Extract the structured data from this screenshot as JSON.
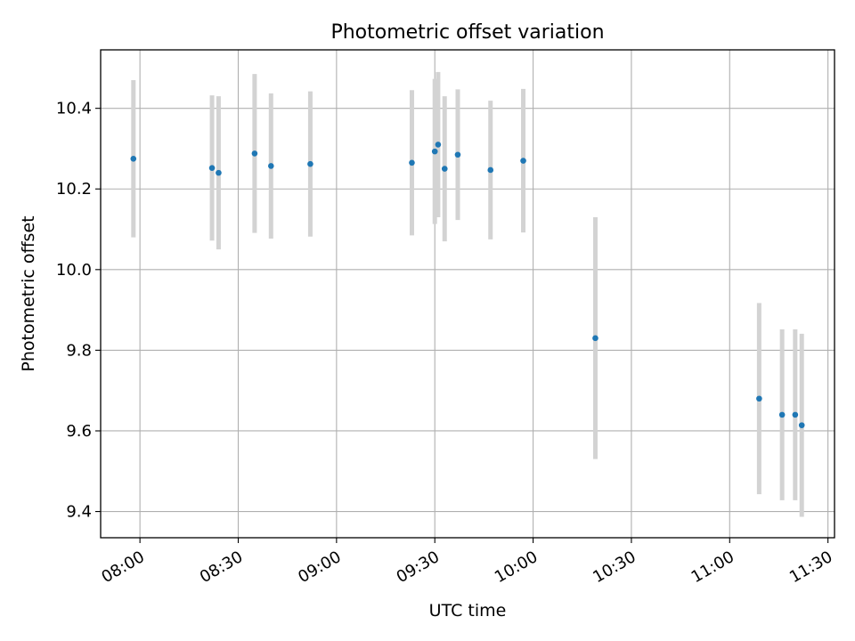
{
  "chart_data": {
    "type": "scatter",
    "title": "Photometric offset variation",
    "xlabel": "UTC time",
    "ylabel": "Photometric offset",
    "x_axis_type": "time",
    "xlim": [
      "07:48",
      "11:32"
    ],
    "ylim": [
      9.335,
      10.545
    ],
    "x_ticks": [
      "08:00",
      "08:30",
      "09:00",
      "09:30",
      "10:00",
      "10:30",
      "11:00",
      "11:30"
    ],
    "y_ticks": [
      9.4,
      9.6,
      9.8,
      10.0,
      10.2,
      10.4
    ],
    "y_tick_labels": [
      "9.4",
      "9.6",
      "9.8",
      "10.0",
      "10.2",
      "10.4"
    ],
    "grid": true,
    "marker_color": "#1f77b4",
    "errorbar_color": "#d3d3d3",
    "points": [
      {
        "x": "07:58",
        "y": 10.275,
        "yerr": 0.195
      },
      {
        "x": "08:22",
        "y": 10.252,
        "yerr": 0.18
      },
      {
        "x": "08:24",
        "y": 10.24,
        "yerr": 0.19
      },
      {
        "x": "08:35",
        "y": 10.288,
        "yerr": 0.197
      },
      {
        "x": "08:40",
        "y": 10.257,
        "yerr": 0.18
      },
      {
        "x": "08:52",
        "y": 10.262,
        "yerr": 0.18
      },
      {
        "x": "09:23",
        "y": 10.265,
        "yerr": 0.18
      },
      {
        "x": "09:30",
        "y": 10.293,
        "yerr": 0.18
      },
      {
        "x": "09:31",
        "y": 10.31,
        "yerr": 0.18
      },
      {
        "x": "09:33",
        "y": 10.25,
        "yerr": 0.18
      },
      {
        "x": "09:37",
        "y": 10.285,
        "yerr": 0.162
      },
      {
        "x": "09:47",
        "y": 10.247,
        "yerr": 0.172
      },
      {
        "x": "09:57",
        "y": 10.27,
        "yerr": 0.178
      },
      {
        "x": "10:19",
        "y": 9.83,
        "yerr": 0.3
      },
      {
        "x": "11:09",
        "y": 9.68,
        "yerr": 0.237
      },
      {
        "x": "11:16",
        "y": 9.64,
        "yerr": 0.212
      },
      {
        "x": "11:20",
        "y": 9.64,
        "yerr": 0.212
      },
      {
        "x": "11:22",
        "y": 9.614,
        "yerr": 0.227
      }
    ]
  }
}
